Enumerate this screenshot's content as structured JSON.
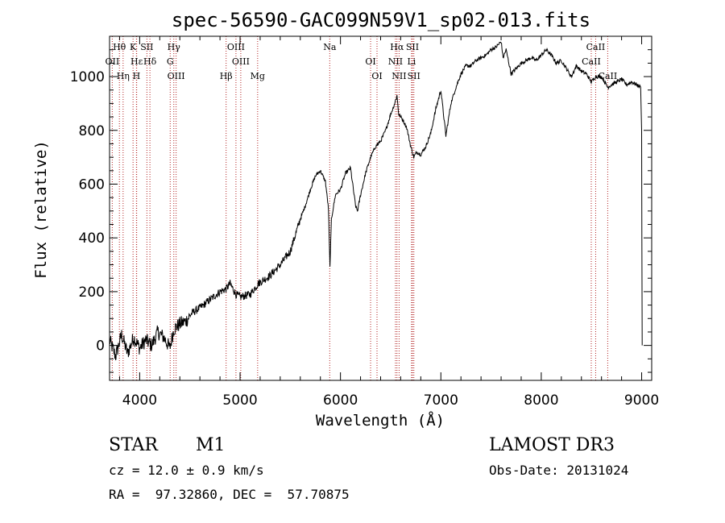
{
  "chart_data": {
    "type": "line",
    "title": "spec-56590-GAC099N59V1_sp02-013.fits",
    "xlabel": "Wavelength (Å)",
    "ylabel": "Flux (relative)",
    "xlim": [
      3700,
      9100
    ],
    "ylim": [
      -130,
      1150
    ],
    "x_ticks": [
      4000,
      5000,
      6000,
      7000,
      8000,
      9000
    ],
    "x_tick_labels": [
      "4000",
      "5000",
      "6000",
      "7000",
      "8000",
      "9000"
    ],
    "y_ticks": [
      0,
      200,
      400,
      600,
      800,
      1000
    ],
    "y_tick_labels": [
      "0",
      "200",
      "400",
      "600",
      "800",
      "1000"
    ],
    "series": [
      {
        "name": "flux",
        "x": [
          3700,
          3760,
          3820,
          3880,
          3940,
          4000,
          4060,
          4120,
          4180,
          4240,
          4300,
          4340,
          4400,
          4460,
          4520,
          4600,
          4700,
          4800,
          4860,
          4900,
          4960,
          5000,
          5100,
          5180,
          5300,
          5400,
          5500,
          5600,
          5650,
          5700,
          5750,
          5800,
          5850,
          5880,
          5895,
          5910,
          5950,
          6000,
          6050,
          6100,
          6150,
          6170,
          6200,
          6250,
          6300,
          6350,
          6400,
          6450,
          6500,
          6540,
          6563,
          6580,
          6620,
          6660,
          6700,
          6730,
          6760,
          6800,
          6850,
          6900,
          6950,
          7000,
          7050,
          7100,
          7150,
          7200,
          7250,
          7300,
          7350,
          7400,
          7450,
          7500,
          7550,
          7600,
          7620,
          7650,
          7700,
          7750,
          7800,
          7850,
          7900,
          7950,
          8000,
          8050,
          8100,
          8150,
          8200,
          8250,
          8300,
          8350,
          8400,
          8450,
          8498,
          8542,
          8600,
          8662,
          8700,
          8750,
          8800,
          8850,
          8900,
          8950,
          8990,
          9000,
          9005
        ],
        "values": [
          20,
          -40,
          40,
          -30,
          30,
          -10,
          20,
          0,
          50,
          30,
          -10,
          60,
          80,
          90,
          120,
          140,
          170,
          200,
          210,
          230,
          190,
          180,
          190,
          230,
          260,
          300,
          350,
          470,
          520,
          580,
          630,
          650,
          610,
          510,
          290,
          470,
          560,
          580,
          640,
          660,
          520,
          500,
          560,
          640,
          700,
          740,
          760,
          800,
          860,
          900,
          930,
          860,
          840,
          810,
          740,
          700,
          720,
          710,
          740,
          790,
          880,
          950,
          780,
          900,
          960,
          1010,
          1040,
          1040,
          1060,
          1070,
          1080,
          1100,
          1110,
          1130,
          1070,
          1100,
          1010,
          1030,
          1050,
          1060,
          1070,
          1060,
          1080,
          1100,
          1080,
          1050,
          1060,
          1030,
          1000,
          1040,
          1020,
          1010,
          980,
          1000,
          1000,
          960,
          970,
          980,
          990,
          970,
          980,
          970,
          960,
          800,
          0
        ]
      }
    ],
    "lines": [
      {
        "label": "Hθ",
        "x": 3798
      },
      {
        "label": "OII",
        "x": 3727
      },
      {
        "label": "Hη",
        "x": 3835
      },
      {
        "label": "K",
        "x": 3934
      },
      {
        "label": "Hε",
        "x": 3970
      },
      {
        "label": "H",
        "x": 3968
      },
      {
        "label": "SII",
        "x": 4072
      },
      {
        "label": "Hδ",
        "x": 4102
      },
      {
        "label": "OIII",
        "x": 4363
      },
      {
        "label": "Hγ",
        "x": 4340
      },
      {
        "label": "G",
        "x": 4304
      },
      {
        "label": "Hβ",
        "x": 4861
      },
      {
        "label": "OIII",
        "x": 4959
      },
      {
        "label": "OIII",
        "x": 5007
      },
      {
        "label": "Mg",
        "x": 5175
      },
      {
        "label": "Na",
        "x": 5893
      },
      {
        "label": "OI",
        "x": 6300
      },
      {
        "label": "OI",
        "x": 6364
      },
      {
        "label": "Hα",
        "x": 6563
      },
      {
        "label": "NII",
        "x": 6548
      },
      {
        "label": "NII",
        "x": 6584
      },
      {
        "label": "SII",
        "x": 6717
      },
      {
        "label": "Li",
        "x": 6708
      },
      {
        "label": "SII",
        "x": 6731
      },
      {
        "label": "CaII",
        "x": 8542
      },
      {
        "label": "CaII",
        "x": 8498
      },
      {
        "label": "CaII",
        "x": 8662
      }
    ]
  },
  "info": {
    "class_label": "STAR",
    "subclass_label": "M1",
    "survey": "LAMOST DR3",
    "redshift": "cz = 12.0 ± 0.9 km/s",
    "obs_date": "Obs-Date: 20131024",
    "coords": "RA =  97.32860, DEC =  57.70875"
  },
  "colors": {
    "axis": "#000000",
    "line_marker": "#b22222",
    "spectrum": "#000000"
  }
}
